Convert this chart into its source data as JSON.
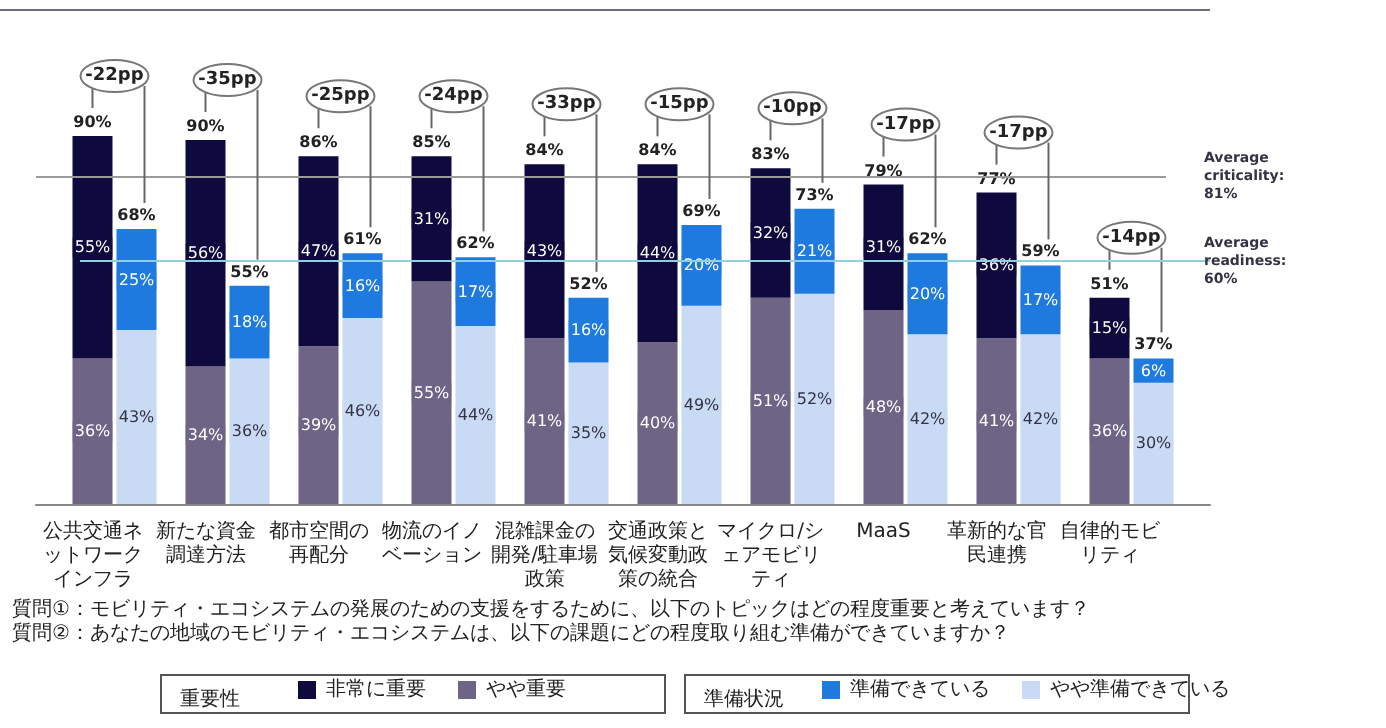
{
  "chart_data": [
    {
      "type": "bar",
      "stacked": true,
      "categories": [
        "公共交通ネットワークインフラ",
        "新たな資金調達方法",
        "都市空間の再配分",
        "物流のイノベーション",
        "混雑課金の開発/駐車場政策",
        "交通政策と気候変動政策の統合",
        "マイクロ/シェアモビリティ",
        "MaaS",
        "革新的な官民連携",
        "自律的モビリティ"
      ],
      "series": [
        {
          "name": "やや重要",
          "color": "#6e6485",
          "values": [
            36,
            34,
            39,
            55,
            41,
            40,
            51,
            48,
            41,
            36
          ],
          "value_labels": [
            "36%",
            "34%",
            "39%",
            "55%",
            "41%",
            "40%",
            "51%",
            "48%",
            "41%",
            "36%"
          ]
        },
        {
          "name": "非常に重要",
          "color": "#0e0a3e",
          "values": [
            55,
            56,
            47,
            31,
            43,
            44,
            32,
            31,
            36,
            15
          ],
          "value_labels": [
            "55%",
            "56%",
            "47%",
            "31%",
            "43%",
            "44%",
            "32%",
            "31%",
            "36%",
            "15%"
          ]
        }
      ],
      "totals": [
        "90%",
        "90%",
        "86%",
        "85%",
        "84%",
        "84%",
        "83%",
        "79%",
        "77%",
        "51%"
      ],
      "legend": "bottom",
      "legend_title": "重要性",
      "ref_lines": [
        {
          "axis": "y",
          "value": 81,
          "label": "Average\ncriticality:\n81%",
          "color": "#9a9a9a"
        }
      ],
      "annotations": [
        "質問①：モビリティ・エコシステムの発展のための支援をするために、以下のトピックはどの程度重要と考えています？",
        "質問②：あなたの地域のモビリティ・エコシステムは、以下の課題にどの程度取り組む準備ができていますか？"
      ]
    },
    {
      "type": "bar",
      "stacked": true,
      "tick_labels": false,
      "categories": [
        "公共交通ネットワークインフラ",
        "新たな資金調達方法",
        "都市空間の再配分",
        "物流のイノベーション",
        "混雑課金の開発/駐車場政策",
        "交通政策と気候変動政策の統合",
        "マイクロ/シェアモビリティ",
        "MaaS",
        "革新的な官民連携",
        "自律的モビリティ"
      ],
      "series": [
        {
          "name": "やや準備できている",
          "color": "#c9daf5",
          "values": [
            43,
            36,
            46,
            44,
            35,
            49,
            52,
            42,
            42,
            30
          ],
          "value_labels": [
            "43%",
            "36%",
            "46%",
            "44%",
            "35%",
            "49%",
            "52%",
            "42%",
            "42%",
            "30%"
          ]
        },
        {
          "name": "準備できている",
          "color": "#1f7ae0",
          "values": [
            25,
            18,
            16,
            17,
            16,
            20,
            21,
            20,
            17,
            6
          ],
          "value_labels": [
            "25%",
            "18%",
            "16%",
            "17%",
            "16%",
            "20%",
            "21%",
            "20%",
            "17%",
            "6%"
          ]
        }
      ],
      "totals": [
        "68%",
        "55%",
        "61%",
        "62%",
        "52%",
        "69%",
        "73%",
        "62%",
        "59%",
        "37%"
      ],
      "legend": "bottom",
      "legend_title": "準備状況",
      "ref_lines": [
        {
          "axis": "y",
          "value": 60,
          "label": "Average\nreadiness:\n60%",
          "color": "#8fd0e0"
        }
      ],
      "annotations": [
        "-22pp",
        "-35pp",
        "-25pp",
        "-24pp",
        "-33pp",
        "-15pp",
        "-10pp",
        "-17pp",
        "-17pp",
        "-14pp"
      ]
    }
  ]
}
